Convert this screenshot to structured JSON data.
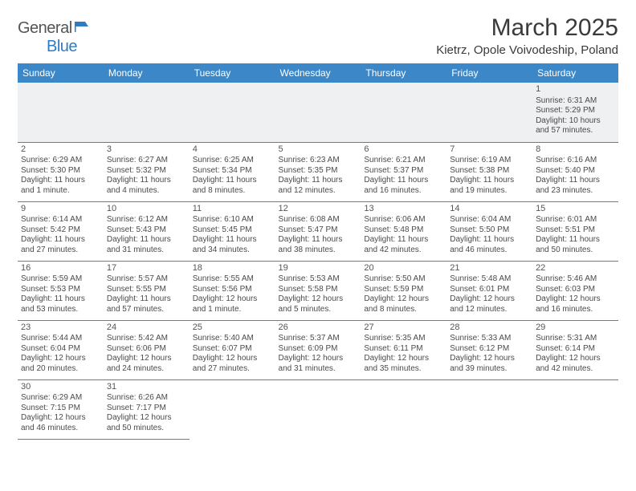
{
  "logo": {
    "textA": "General",
    "textB": "Blue"
  },
  "title": "March 2025",
  "location": "Kietrz, Opole Voivodeship, Poland",
  "headers": [
    "Sunday",
    "Monday",
    "Tuesday",
    "Wednesday",
    "Thursday",
    "Friday",
    "Saturday"
  ],
  "colors": {
    "headerBg": "#3b87c8",
    "headerText": "#ffffff",
    "border": "#3b87c8",
    "logoBlue": "#2f7bc4",
    "textGray": "#4a4a4a",
    "firstRowBg": "#eef0f1"
  },
  "weeks": [
    [
      null,
      null,
      null,
      null,
      null,
      null,
      {
        "d": "1",
        "sr": "Sunrise: 6:31 AM",
        "ss": "Sunset: 5:29 PM",
        "dl": "Daylight: 10 hours and 57 minutes."
      }
    ],
    [
      {
        "d": "2",
        "sr": "Sunrise: 6:29 AM",
        "ss": "Sunset: 5:30 PM",
        "dl": "Daylight: 11 hours and 1 minute."
      },
      {
        "d": "3",
        "sr": "Sunrise: 6:27 AM",
        "ss": "Sunset: 5:32 PM",
        "dl": "Daylight: 11 hours and 4 minutes."
      },
      {
        "d": "4",
        "sr": "Sunrise: 6:25 AM",
        "ss": "Sunset: 5:34 PM",
        "dl": "Daylight: 11 hours and 8 minutes."
      },
      {
        "d": "5",
        "sr": "Sunrise: 6:23 AM",
        "ss": "Sunset: 5:35 PM",
        "dl": "Daylight: 11 hours and 12 minutes."
      },
      {
        "d": "6",
        "sr": "Sunrise: 6:21 AM",
        "ss": "Sunset: 5:37 PM",
        "dl": "Daylight: 11 hours and 16 minutes."
      },
      {
        "d": "7",
        "sr": "Sunrise: 6:19 AM",
        "ss": "Sunset: 5:38 PM",
        "dl": "Daylight: 11 hours and 19 minutes."
      },
      {
        "d": "8",
        "sr": "Sunrise: 6:16 AM",
        "ss": "Sunset: 5:40 PM",
        "dl": "Daylight: 11 hours and 23 minutes."
      }
    ],
    [
      {
        "d": "9",
        "sr": "Sunrise: 6:14 AM",
        "ss": "Sunset: 5:42 PM",
        "dl": "Daylight: 11 hours and 27 minutes."
      },
      {
        "d": "10",
        "sr": "Sunrise: 6:12 AM",
        "ss": "Sunset: 5:43 PM",
        "dl": "Daylight: 11 hours and 31 minutes."
      },
      {
        "d": "11",
        "sr": "Sunrise: 6:10 AM",
        "ss": "Sunset: 5:45 PM",
        "dl": "Daylight: 11 hours and 34 minutes."
      },
      {
        "d": "12",
        "sr": "Sunrise: 6:08 AM",
        "ss": "Sunset: 5:47 PM",
        "dl": "Daylight: 11 hours and 38 minutes."
      },
      {
        "d": "13",
        "sr": "Sunrise: 6:06 AM",
        "ss": "Sunset: 5:48 PM",
        "dl": "Daylight: 11 hours and 42 minutes."
      },
      {
        "d": "14",
        "sr": "Sunrise: 6:04 AM",
        "ss": "Sunset: 5:50 PM",
        "dl": "Daylight: 11 hours and 46 minutes."
      },
      {
        "d": "15",
        "sr": "Sunrise: 6:01 AM",
        "ss": "Sunset: 5:51 PM",
        "dl": "Daylight: 11 hours and 50 minutes."
      }
    ],
    [
      {
        "d": "16",
        "sr": "Sunrise: 5:59 AM",
        "ss": "Sunset: 5:53 PM",
        "dl": "Daylight: 11 hours and 53 minutes."
      },
      {
        "d": "17",
        "sr": "Sunrise: 5:57 AM",
        "ss": "Sunset: 5:55 PM",
        "dl": "Daylight: 11 hours and 57 minutes."
      },
      {
        "d": "18",
        "sr": "Sunrise: 5:55 AM",
        "ss": "Sunset: 5:56 PM",
        "dl": "Daylight: 12 hours and 1 minute."
      },
      {
        "d": "19",
        "sr": "Sunrise: 5:53 AM",
        "ss": "Sunset: 5:58 PM",
        "dl": "Daylight: 12 hours and 5 minutes."
      },
      {
        "d": "20",
        "sr": "Sunrise: 5:50 AM",
        "ss": "Sunset: 5:59 PM",
        "dl": "Daylight: 12 hours and 8 minutes."
      },
      {
        "d": "21",
        "sr": "Sunrise: 5:48 AM",
        "ss": "Sunset: 6:01 PM",
        "dl": "Daylight: 12 hours and 12 minutes."
      },
      {
        "d": "22",
        "sr": "Sunrise: 5:46 AM",
        "ss": "Sunset: 6:03 PM",
        "dl": "Daylight: 12 hours and 16 minutes."
      }
    ],
    [
      {
        "d": "23",
        "sr": "Sunrise: 5:44 AM",
        "ss": "Sunset: 6:04 PM",
        "dl": "Daylight: 12 hours and 20 minutes."
      },
      {
        "d": "24",
        "sr": "Sunrise: 5:42 AM",
        "ss": "Sunset: 6:06 PM",
        "dl": "Daylight: 12 hours and 24 minutes."
      },
      {
        "d": "25",
        "sr": "Sunrise: 5:40 AM",
        "ss": "Sunset: 6:07 PM",
        "dl": "Daylight: 12 hours and 27 minutes."
      },
      {
        "d": "26",
        "sr": "Sunrise: 5:37 AM",
        "ss": "Sunset: 6:09 PM",
        "dl": "Daylight: 12 hours and 31 minutes."
      },
      {
        "d": "27",
        "sr": "Sunrise: 5:35 AM",
        "ss": "Sunset: 6:11 PM",
        "dl": "Daylight: 12 hours and 35 minutes."
      },
      {
        "d": "28",
        "sr": "Sunrise: 5:33 AM",
        "ss": "Sunset: 6:12 PM",
        "dl": "Daylight: 12 hours and 39 minutes."
      },
      {
        "d": "29",
        "sr": "Sunrise: 5:31 AM",
        "ss": "Sunset: 6:14 PM",
        "dl": "Daylight: 12 hours and 42 minutes."
      }
    ],
    [
      {
        "d": "30",
        "sr": "Sunrise: 6:29 AM",
        "ss": "Sunset: 7:15 PM",
        "dl": "Daylight: 12 hours and 46 minutes."
      },
      {
        "d": "31",
        "sr": "Sunrise: 6:26 AM",
        "ss": "Sunset: 7:17 PM",
        "dl": "Daylight: 12 hours and 50 minutes."
      },
      null,
      null,
      null,
      null,
      null
    ]
  ]
}
